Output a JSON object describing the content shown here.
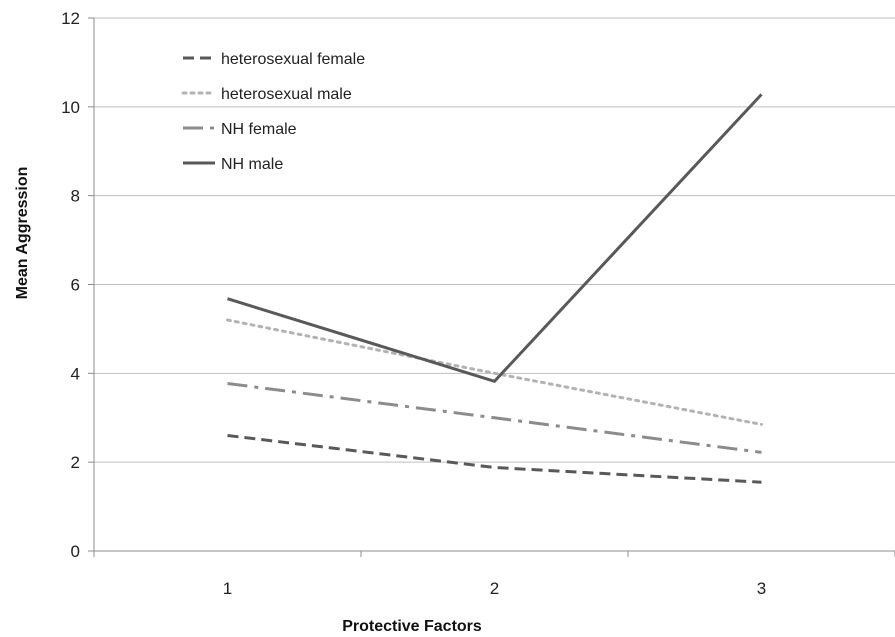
{
  "chart_data": {
    "type": "line",
    "title": "",
    "xlabel": "Protective Factors",
    "ylabel": "Mean  Aggression",
    "categories": [
      "1",
      "2",
      "3"
    ],
    "ylim": [
      0,
      12
    ],
    "yticks": [
      0,
      2,
      4,
      6,
      8,
      10,
      12
    ],
    "grid": "horizontal",
    "legend_position": "top-left",
    "series": [
      {
        "name": "heterosexual female",
        "values": [
          2.6,
          1.88,
          1.55
        ],
        "color": "#595959",
        "dash": "dashed"
      },
      {
        "name": "heterosexual male",
        "values": [
          5.2,
          4.0,
          2.85
        ],
        "color": "#b3b3b3",
        "dash": "dotted"
      },
      {
        "name": "NH female",
        "values": [
          3.77,
          3.0,
          2.22
        ],
        "color": "#8c8c8c",
        "dash": "dash-dot"
      },
      {
        "name": "NH male",
        "values": [
          5.68,
          3.82,
          10.28
        ],
        "color": "#595959",
        "dash": "solid"
      }
    ]
  }
}
